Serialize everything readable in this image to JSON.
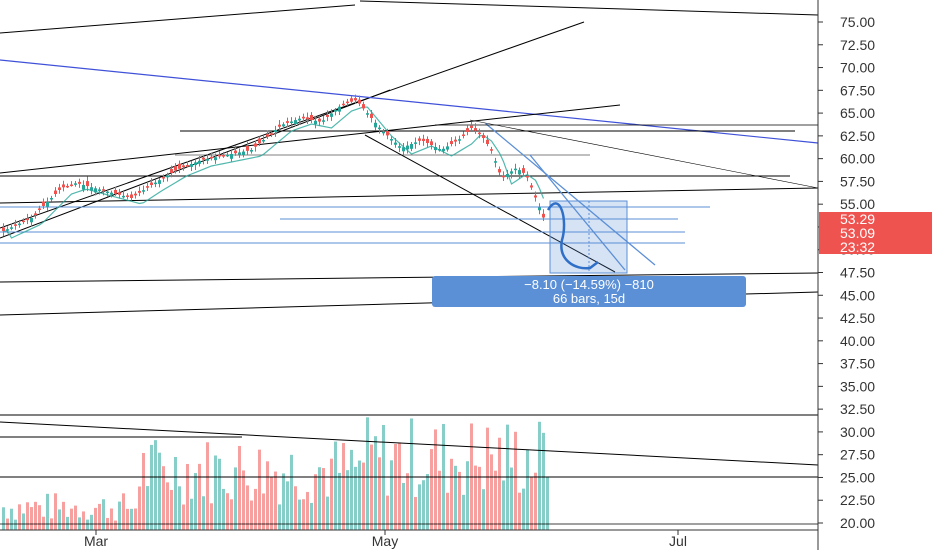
{
  "chart_data": {
    "type": "candlestick",
    "x_tick_labels": [
      "Mar",
      "May",
      "Jul"
    ],
    "y_tick_labels": [
      "75.00",
      "72.50",
      "70.00",
      "67.50",
      "65.00",
      "62.50",
      "60.00",
      "57.50",
      "55.00",
      "52.50",
      "50.00",
      "47.50",
      "45.00",
      "42.50",
      "40.00",
      "37.50",
      "35.00",
      "32.50",
      "30.00",
      "27.50",
      "25.00",
      "22.50",
      "20.00"
    ],
    "ylim": [
      19.5,
      76.5
    ],
    "y_tick_step": 2.5,
    "grid": false,
    "price_labels": [
      {
        "text": "53.29",
        "color": "#ef5350"
      },
      {
        "text": "53.09",
        "color": "#ef5350"
      },
      {
        "text": "23:32",
        "color": "#ef5350"
      }
    ],
    "measure_box": {
      "line1": "−8.10 (−14.59%) −810",
      "line2": "66 bars, 15d",
      "color": "#5b8fd6"
    },
    "series": [
      {
        "kind": "candles",
        "up_color": "#26a69a",
        "down_color": "#ef5350"
      },
      {
        "kind": "moving-average",
        "color": "#26a69a"
      },
      {
        "kind": "volume",
        "up_color": "#26a69a",
        "down_color": "#ef5350"
      }
    ],
    "annotation_colors": {
      "trendline": "#000000",
      "accent_trendline": "#3f51d8",
      "channel": "#5b8fd6"
    }
  }
}
